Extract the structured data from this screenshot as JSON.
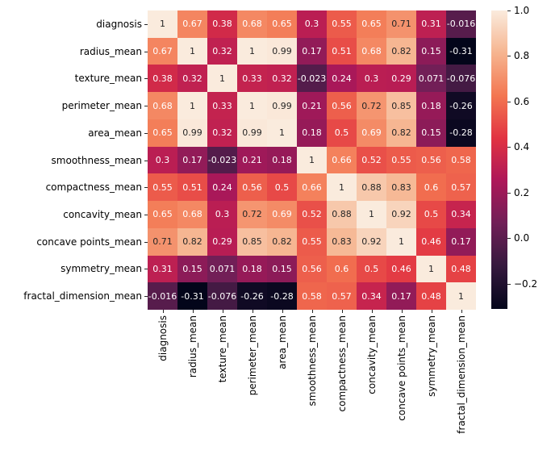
{
  "chart_data": {
    "type": "heatmap",
    "title": "",
    "xlabel": "",
    "ylabel": "",
    "labels": [
      "diagnosis",
      "radius_mean",
      "texture_mean",
      "perimeter_mean",
      "area_mean",
      "smoothness_mean",
      "compactness_mean",
      "concavity_mean",
      "concave points_mean",
      "symmetry_mean",
      "fractal_dimension_mean"
    ],
    "matrix": [
      [
        1,
        0.67,
        0.38,
        0.68,
        0.65,
        0.3,
        0.55,
        0.65,
        0.71,
        0.31,
        -0.016
      ],
      [
        0.67,
        1,
        0.32,
        1,
        0.99,
        0.17,
        0.51,
        0.68,
        0.82,
        0.15,
        -0.31
      ],
      [
        0.38,
        0.32,
        1,
        0.33,
        0.32,
        -0.023,
        0.24,
        0.3,
        0.29,
        0.071,
        -0.076
      ],
      [
        0.68,
        1,
        0.33,
        1,
        0.99,
        0.21,
        0.56,
        0.72,
        0.85,
        0.18,
        -0.26
      ],
      [
        0.65,
        0.99,
        0.32,
        0.99,
        1,
        0.18,
        0.5,
        0.69,
        0.82,
        0.15,
        -0.28
      ],
      [
        0.3,
        0.17,
        -0.023,
        0.21,
        0.18,
        1,
        0.66,
        0.52,
        0.55,
        0.56,
        0.58
      ],
      [
        0.55,
        0.51,
        0.24,
        0.56,
        0.5,
        0.66,
        1,
        0.88,
        0.83,
        0.6,
        0.57
      ],
      [
        0.65,
        0.68,
        0.3,
        0.72,
        0.69,
        0.52,
        0.88,
        1,
        0.92,
        0.5,
        0.34
      ],
      [
        0.71,
        0.82,
        0.29,
        0.85,
        0.82,
        0.55,
        0.83,
        0.92,
        1,
        0.46,
        0.17
      ],
      [
        0.31,
        0.15,
        0.071,
        0.18,
        0.15,
        0.56,
        0.6,
        0.5,
        0.46,
        1,
        0.48
      ],
      [
        -0.016,
        -0.31,
        -0.076,
        -0.26,
        -0.28,
        0.58,
        0.57,
        0.34,
        0.17,
        0.48,
        1
      ]
    ],
    "vmin": -0.31,
    "vmax": 1.0,
    "colormap": {
      "name": "rocket",
      "stops": [
        {
          "t": 0.0,
          "color": "#03051A"
        },
        {
          "t": 0.143,
          "color": "#35193E"
        },
        {
          "t": 0.286,
          "color": "#701F57"
        },
        {
          "t": 0.429,
          "color": "#AD1759"
        },
        {
          "t": 0.571,
          "color": "#E13342"
        },
        {
          "t": 0.714,
          "color": "#F37651"
        },
        {
          "t": 0.857,
          "color": "#F6B48F"
        },
        {
          "t": 1.0,
          "color": "#FAEBDD"
        }
      ]
    },
    "colorbar": {
      "tick_labels": [
        "1.0",
        "0.8",
        "0.6",
        "0.4",
        "0.2",
        "0.0",
        "−0.2"
      ],
      "tick_values": [
        1.0,
        0.8,
        0.6,
        0.4,
        0.2,
        0.0,
        -0.2
      ],
      "position": "right"
    },
    "annotation_colors": {
      "on_light": "#262626",
      "on_dark": "#FFFFFF"
    },
    "background": "#FFFFFF",
    "grid": false,
    "legend": false
  }
}
